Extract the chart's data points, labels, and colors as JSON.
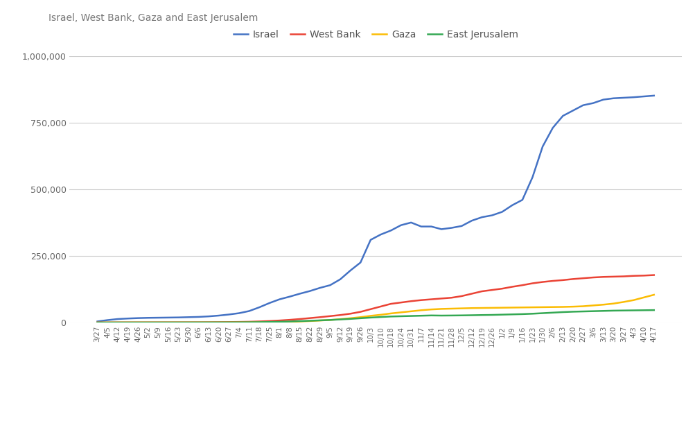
{
  "title": "Israel, West Bank, Gaza and East Jerusalem",
  "background_color": "#ffffff",
  "legend_labels": [
    "Israel",
    "West Bank",
    "Gaza",
    "East Jerusalem"
  ],
  "line_colors": [
    "#4472c4",
    "#ea4335",
    "#fbbc04",
    "#34a853"
  ],
  "x_labels": [
    "3/27",
    "4/5",
    "4/12",
    "4/19",
    "4/26",
    "5/2",
    "5/9",
    "5/16",
    "5/23",
    "5/30",
    "6/6",
    "6/13",
    "6/20",
    "6/27",
    "7/4",
    "7/11",
    "7/18",
    "7/25",
    "8/1",
    "8/8",
    "8/15",
    "8/22",
    "8/29",
    "9/5",
    "9/12",
    "9/19",
    "9/26",
    "10/3",
    "10/10",
    "10/18",
    "10/24",
    "10/31",
    "11/7",
    "11/14",
    "11/21",
    "11/28",
    "12/5",
    "12/12",
    "12/19",
    "12/26",
    "1/2",
    "1/9",
    "1/16",
    "1/23",
    "1/30",
    "2/6",
    "2/13",
    "2/20",
    "2/27",
    "3/6",
    "3/13",
    "3/20",
    "3/27",
    "4/3",
    "4/10",
    "4/17"
  ],
  "israel": [
    4000,
    9000,
    13000,
    15000,
    16500,
    17500,
    18000,
    18500,
    19000,
    20000,
    21000,
    23000,
    26000,
    30000,
    35000,
    43000,
    57000,
    73000,
    87000,
    97000,
    108000,
    118000,
    130000,
    140000,
    162000,
    195000,
    225000,
    310000,
    330000,
    345000,
    365000,
    375000,
    360000,
    360000,
    350000,
    355000,
    362000,
    382000,
    395000,
    402000,
    415000,
    440000,
    460000,
    545000,
    660000,
    730000,
    775000,
    795000,
    815000,
    823000,
    836000,
    841000,
    843000,
    845000,
    848000,
    851000
  ],
  "west_bank": [
    300,
    400,
    450,
    500,
    550,
    600,
    650,
    700,
    750,
    800,
    900,
    1100,
    1400,
    1800,
    2200,
    2800,
    4000,
    5500,
    7500,
    10000,
    13000,
    16500,
    20000,
    24000,
    28000,
    33000,
    40000,
    50000,
    60000,
    70000,
    75000,
    80000,
    84000,
    87000,
    90000,
    93000,
    99000,
    108000,
    117000,
    122000,
    127000,
    134000,
    140000,
    147000,
    152000,
    156000,
    159000,
    163000,
    166000,
    169000,
    171000,
    172000,
    173000,
    175000,
    176000,
    178000
  ],
  "gaza": [
    10,
    15,
    25,
    35,
    45,
    55,
    65,
    75,
    85,
    100,
    120,
    150,
    200,
    280,
    380,
    560,
    850,
    1100,
    1500,
    2300,
    3800,
    5500,
    7500,
    9500,
    12500,
    16000,
    20000,
    25000,
    29000,
    34000,
    38000,
    42000,
    46000,
    49000,
    51000,
    52000,
    53000,
    54000,
    54500,
    55000,
    55500,
    56000,
    56500,
    57000,
    57500,
    58000,
    58500,
    59500,
    61000,
    64000,
    67000,
    71000,
    77000,
    84000,
    94000,
    104000
  ],
  "east_jerusalem": [
    5,
    10,
    20,
    30,
    50,
    80,
    110,
    140,
    180,
    220,
    270,
    330,
    390,
    480,
    650,
    950,
    1400,
    2000,
    2800,
    3800,
    5200,
    6500,
    8000,
    9500,
    11500,
    13500,
    16000,
    18500,
    20500,
    22500,
    23500,
    24500,
    25500,
    26500,
    26000,
    26300,
    26700,
    27300,
    28000,
    28500,
    29500,
    30500,
    31500,
    33000,
    35000,
    37000,
    39000,
    40500,
    41500,
    42500,
    43500,
    44500,
    45000,
    45500,
    46000,
    46500
  ],
  "ylim": [
    0,
    1000000
  ],
  "yticks": [
    0,
    250000,
    500000,
    750000,
    1000000
  ],
  "title_fontsize": 10,
  "legend_fontsize": 10,
  "tick_fontsize": 9,
  "xtick_fontsize": 7.5
}
